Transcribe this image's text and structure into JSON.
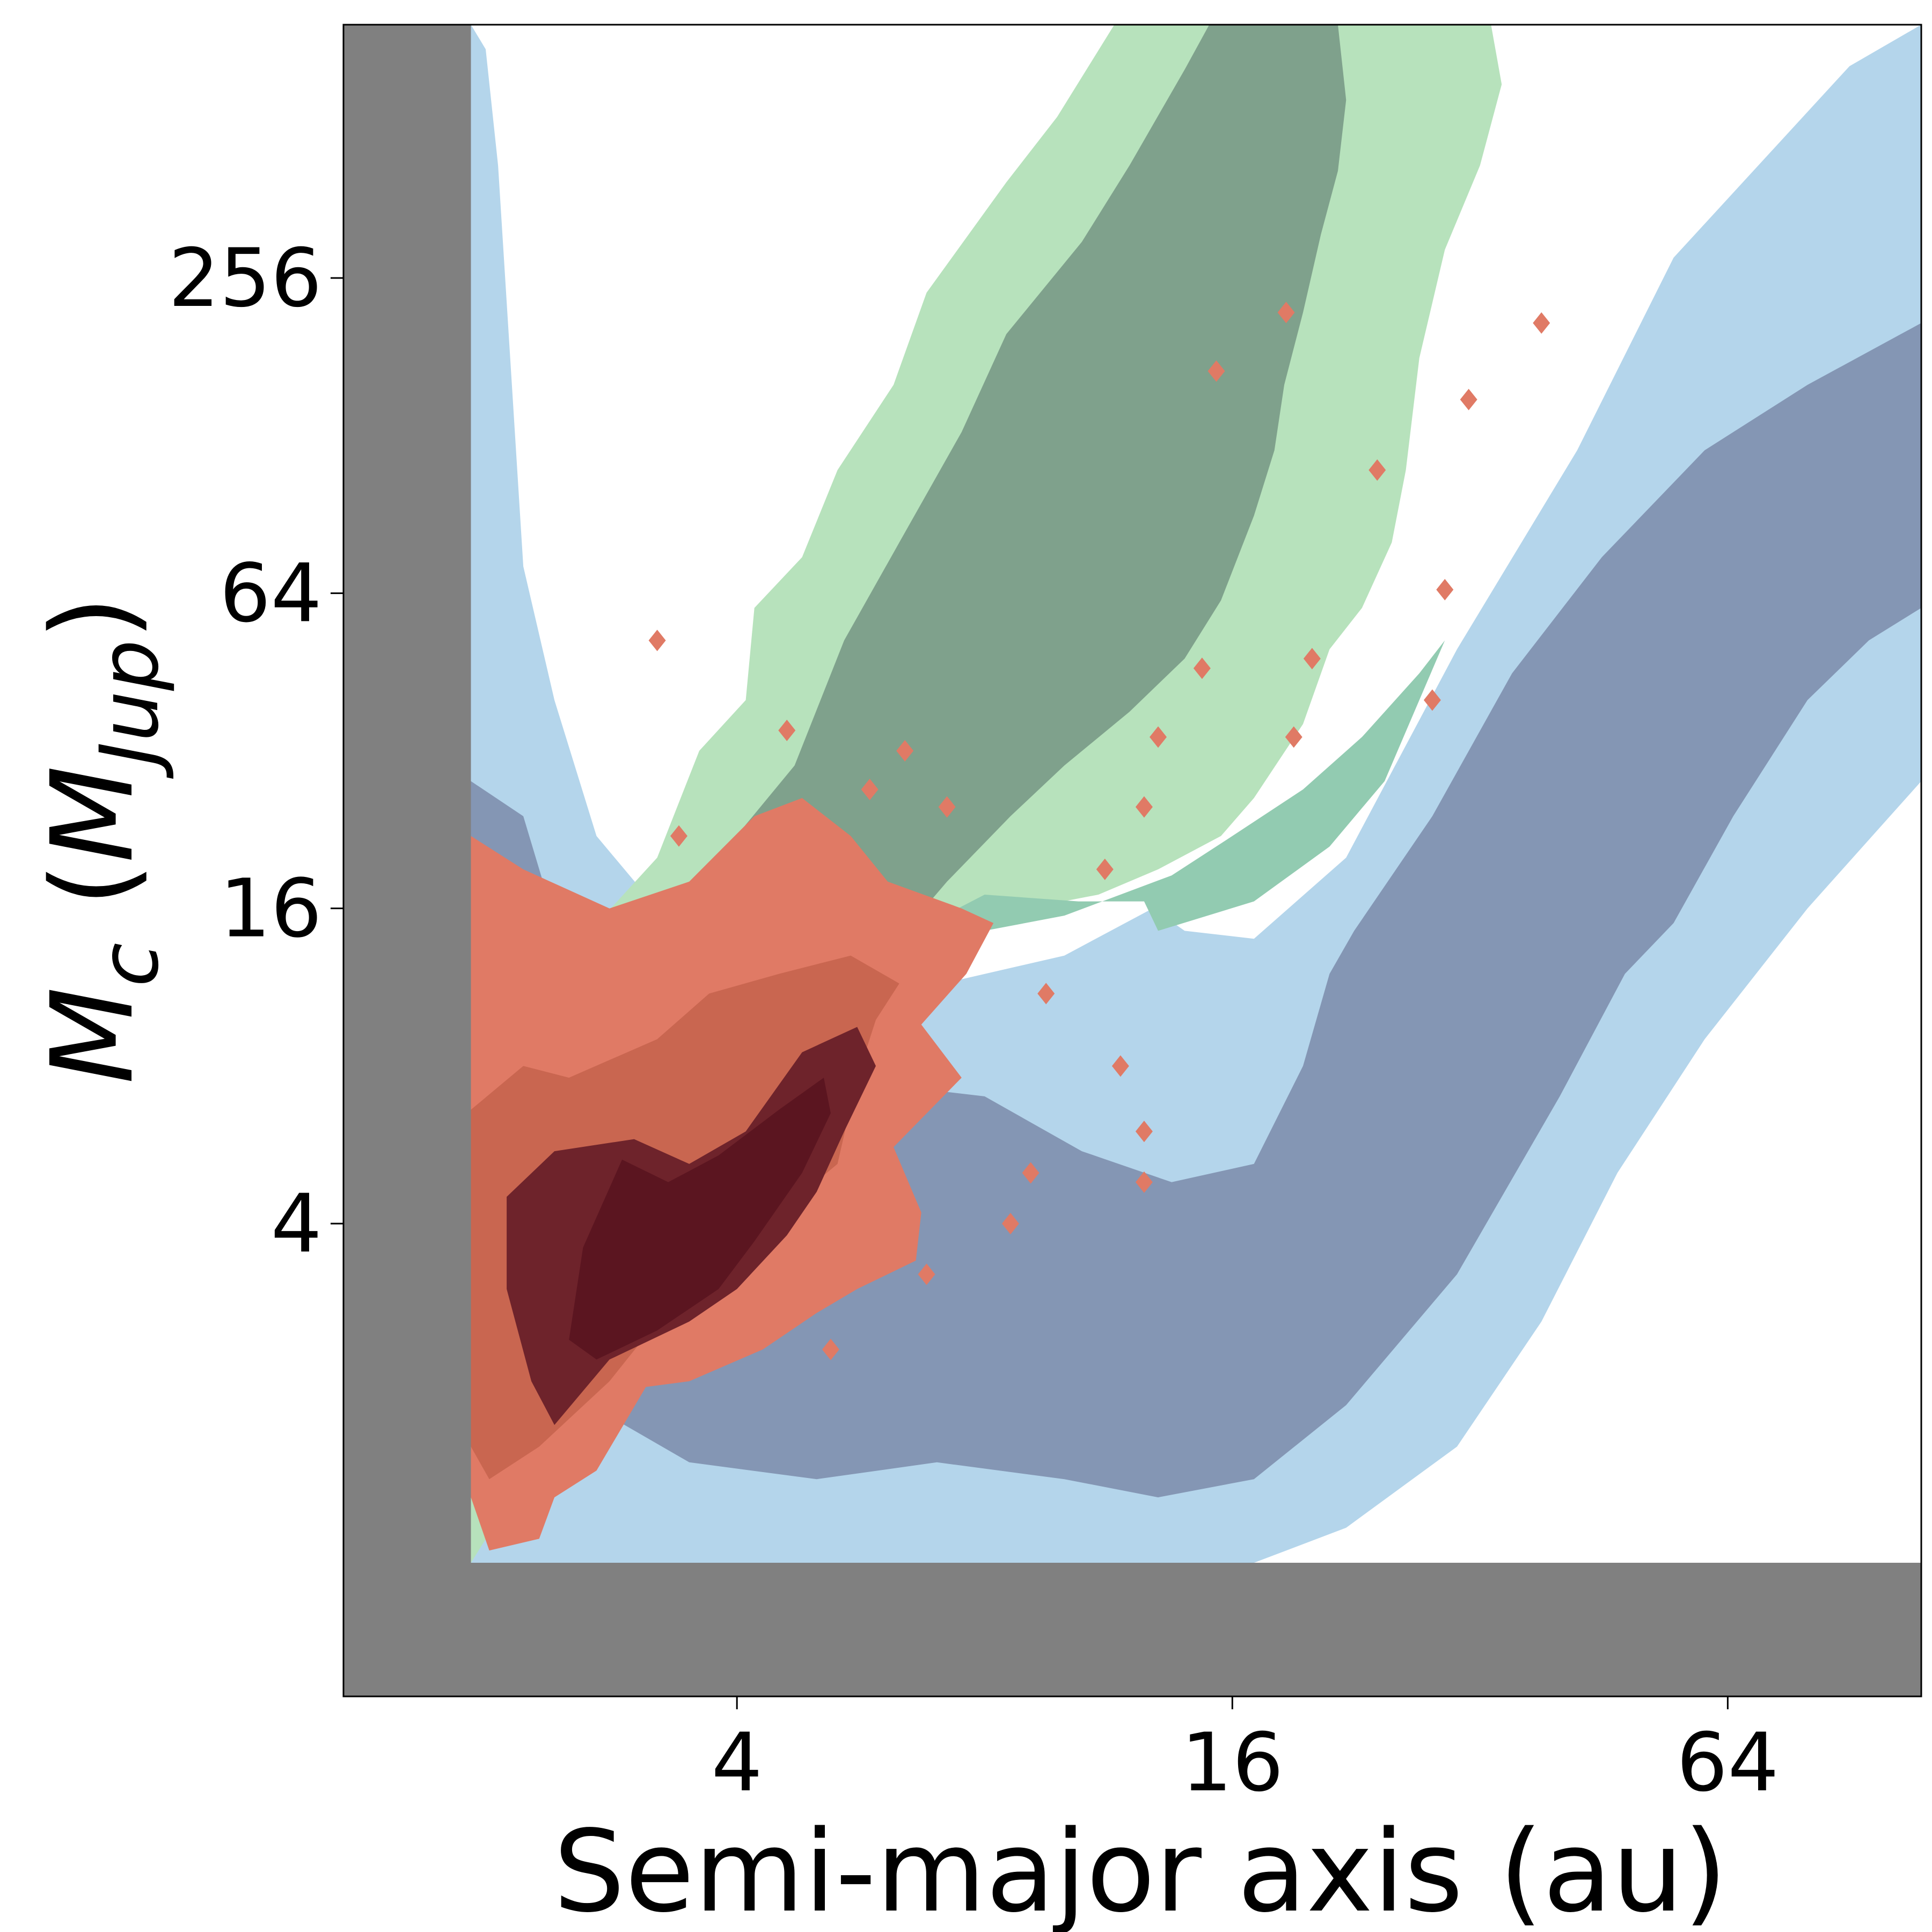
{
  "chart_data": {
    "type": "contour",
    "xlabel": "Semi-major axis (au)",
    "ylabel_main": "M",
    "ylabel_sub": "c",
    "ylabel_paren": "M",
    "ylabel_paren_sub": "Jup",
    "x_scale": "log2",
    "y_scale": "log2",
    "xlim": [
      1.33,
      110
    ],
    "ylim": [
      0.5,
      780
    ],
    "xticks": [
      4,
      16,
      64
    ],
    "xtick_labels": [
      "4",
      "16",
      "64"
    ],
    "yticks": [
      4,
      16,
      64,
      256
    ],
    "ytick_labels": [
      "4",
      "16",
      "64",
      "256"
    ],
    "excluded_region": {
      "color": "#808080",
      "a_below_au": 1.9,
      "mass_below_mjup": 0.9
    },
    "grid": false,
    "legend": "none",
    "layers": [
      {
        "id": "blue-outer",
        "color": "#b4d5eb",
        "contour": [
          [
            1.9,
            780
          ],
          [
            1.98,
            700
          ],
          [
            2.05,
            420
          ],
          [
            2.2,
            72
          ],
          [
            2.4,
            40
          ],
          [
            2.7,
            22
          ],
          [
            3.2,
            16
          ],
          [
            4.4,
            13
          ],
          [
            6.3,
            11
          ],
          [
            10,
            13
          ],
          [
            12.8,
            16
          ],
          [
            14,
            14.5
          ],
          [
            17,
            14
          ],
          [
            22,
            20
          ],
          [
            30,
            50
          ],
          [
            42,
            120
          ],
          [
            55,
            280
          ],
          [
            90,
            650
          ],
          [
            110,
            780
          ],
          [
            110,
            28
          ],
          [
            80,
            16
          ],
          [
            60,
            9
          ],
          [
            47,
            5
          ],
          [
            38,
            2.6
          ],
          [
            30,
            1.5
          ],
          [
            22,
            1.05
          ],
          [
            17,
            0.9
          ],
          [
            13,
            0.9
          ],
          [
            10,
            0.9
          ],
          [
            6,
            0.9
          ],
          [
            1.9,
            0.9
          ]
        ]
      },
      {
        "id": "blue-inner",
        "color": "#8496b4",
        "contour": [
          [
            1.9,
            28
          ],
          [
            2.2,
            24
          ],
          [
            2.6,
            10
          ],
          [
            3.5,
            8
          ],
          [
            5.5,
            7.5
          ],
          [
            8,
            7
          ],
          [
            10.5,
            5.5
          ],
          [
            13.5,
            4.8
          ],
          [
            17,
            5.2
          ],
          [
            19.5,
            8
          ],
          [
            21,
            12
          ],
          [
            22.5,
            14.5
          ],
          [
            28,
            24
          ],
          [
            35,
            45
          ],
          [
            45,
            75
          ],
          [
            60,
            120
          ],
          [
            80,
            160
          ],
          [
            110,
            210
          ],
          [
            110,
            60
          ],
          [
            95,
            52
          ],
          [
            80,
            40
          ],
          [
            65,
            24
          ],
          [
            55,
            15
          ],
          [
            48,
            12
          ],
          [
            40,
            7
          ],
          [
            30,
            3.2
          ],
          [
            22,
            1.8
          ],
          [
            17,
            1.3
          ],
          [
            13,
            1.2
          ],
          [
            10,
            1.3
          ],
          [
            7,
            1.4
          ],
          [
            5,
            1.3
          ],
          [
            3.5,
            1.4
          ],
          [
            2.5,
            1.9
          ],
          [
            1.9,
            2.6
          ]
        ]
      },
      {
        "id": "green-outer",
        "color": "#b7e2bc",
        "contour": [
          [
            1.9,
            5.8
          ],
          [
            2.3,
            9
          ],
          [
            2.6,
            14
          ],
          [
            3.2,
            20
          ],
          [
            3.6,
            32
          ],
          [
            4.1,
            40
          ],
          [
            4.2,
            60
          ],
          [
            4.8,
            75
          ],
          [
            5.3,
            110
          ],
          [
            6.2,
            160
          ],
          [
            6.8,
            240
          ],
          [
            8.5,
            390
          ],
          [
            9.8,
            520
          ],
          [
            11.5,
            780
          ],
          [
            33,
            780
          ],
          [
            34,
            600
          ],
          [
            32,
            420
          ],
          [
            29,
            290
          ],
          [
            27,
            180
          ],
          [
            26,
            110
          ],
          [
            25,
            80
          ],
          [
            23,
            60
          ],
          [
            21,
            50
          ],
          [
            19.5,
            36
          ],
          [
            17,
            26
          ],
          [
            15.5,
            22
          ],
          [
            13,
            19
          ],
          [
            11,
            17
          ],
          [
            9,
            16
          ],
          [
            7.5,
            15
          ],
          [
            6.2,
            13
          ],
          [
            4.4,
            11
          ],
          [
            3.2,
            9
          ],
          [
            2.8,
            5.5
          ],
          [
            2.4,
            2.5
          ],
          [
            2.2,
            1.3
          ],
          [
            1.9,
            0.9
          ]
        ]
      },
      {
        "id": "green-inner",
        "color": "#7fa18c",
        "contour": [
          [
            3.5,
            14.5
          ],
          [
            3.8,
            20
          ],
          [
            4.7,
            30
          ],
          [
            5.4,
            52
          ],
          [
            6.3,
            80
          ],
          [
            7.5,
            130
          ],
          [
            8.5,
            200
          ],
          [
            10.5,
            300
          ],
          [
            12,
            420
          ],
          [
            14,
            640
          ],
          [
            15,
            780
          ],
          [
            21.5,
            780
          ],
          [
            22,
            560
          ],
          [
            21.5,
            410
          ],
          [
            20.5,
            310
          ],
          [
            19.5,
            220
          ],
          [
            18.5,
            160
          ],
          [
            18,
            120
          ],
          [
            17,
            90
          ],
          [
            15.5,
            62
          ],
          [
            14,
            48
          ],
          [
            12,
            38
          ],
          [
            10,
            30
          ],
          [
            8.6,
            24
          ],
          [
            7.2,
            18
          ],
          [
            6.4,
            14.5
          ],
          [
            5.6,
            12.8
          ],
          [
            4.4,
            12.8
          ]
        ]
      },
      {
        "id": "teal-overlap",
        "color": "#92cbb1",
        "contour": [
          [
            2.5,
            16.5
          ],
          [
            3.6,
            12.5
          ],
          [
            4.7,
            11.5
          ],
          [
            6.3,
            14
          ],
          [
            8,
            17
          ],
          [
            10.4,
            16.5
          ],
          [
            12.5,
            16.5
          ],
          [
            13,
            14.5
          ],
          [
            17,
            16.5
          ],
          [
            21,
            21
          ],
          [
            24.5,
            28
          ],
          [
            27,
            40
          ],
          [
            29,
            52
          ],
          [
            27,
            45
          ],
          [
            23,
            34
          ],
          [
            19.5,
            27
          ],
          [
            16,
            22
          ],
          [
            13.5,
            18.5
          ],
          [
            10,
            15.5
          ],
          [
            8,
            14.5
          ],
          [
            6.3,
            11.5
          ],
          [
            4.6,
            9
          ],
          [
            3.5,
            8.2
          ],
          [
            2.8,
            7.5
          ]
        ]
      },
      {
        "id": "red-outer",
        "color": "#e07a65",
        "contour": [
          [
            1.9,
            22
          ],
          [
            2.2,
            19
          ],
          [
            2.8,
            16
          ],
          [
            3.5,
            18
          ],
          [
            4.2,
            24
          ],
          [
            4.8,
            26
          ],
          [
            5.5,
            22
          ],
          [
            6.1,
            18
          ],
          [
            7.5,
            16
          ],
          [
            8.2,
            15
          ],
          [
            7.6,
            12
          ],
          [
            6.7,
            9.6
          ],
          [
            7.5,
            7.6
          ],
          [
            6.2,
            5.6
          ],
          [
            6.7,
            4.2
          ],
          [
            6.6,
            3.4
          ],
          [
            5.6,
            3.0
          ],
          [
            5.0,
            2.7
          ],
          [
            4.3,
            2.3
          ],
          [
            3.5,
            2.0
          ],
          [
            3.1,
            1.95
          ],
          [
            2.7,
            1.35
          ],
          [
            2.4,
            1.2
          ],
          [
            2.3,
            1.0
          ],
          [
            2.0,
            0.95
          ],
          [
            1.9,
            1.2
          ]
        ]
      },
      {
        "id": "red-mid",
        "color": "#c96650",
        "contour": [
          [
            1.9,
            6.6
          ],
          [
            2.2,
            8
          ],
          [
            2.5,
            7.6
          ],
          [
            3.2,
            9
          ],
          [
            3.7,
            11
          ],
          [
            4.5,
            12
          ],
          [
            5.5,
            13
          ],
          [
            6.3,
            11.5
          ],
          [
            5.9,
            9.8
          ],
          [
            5.6,
            7.6
          ],
          [
            5.3,
            5.2
          ],
          [
            4.5,
            4.2
          ],
          [
            3.8,
            3.4
          ],
          [
            3.2,
            2.6
          ],
          [
            2.8,
            2.0
          ],
          [
            2.3,
            1.5
          ],
          [
            2.0,
            1.3
          ],
          [
            1.9,
            1.5
          ]
        ]
      },
      {
        "id": "red-inner",
        "color": "#6e232b",
        "contour": [
          [
            2.1,
            4.5
          ],
          [
            2.4,
            5.5
          ],
          [
            3.0,
            5.8
          ],
          [
            3.5,
            5.2
          ],
          [
            4.1,
            6.0
          ],
          [
            4.8,
            8.5
          ],
          [
            5.6,
            9.5
          ],
          [
            5.9,
            8
          ],
          [
            5.4,
            6.0
          ],
          [
            5.0,
            4.6
          ],
          [
            4.6,
            3.8
          ],
          [
            4.0,
            3.0
          ],
          [
            3.5,
            2.6
          ],
          [
            2.8,
            2.2
          ],
          [
            2.4,
            1.65
          ],
          [
            2.25,
            2.0
          ],
          [
            2.1,
            3.0
          ]
        ]
      },
      {
        "id": "red-core",
        "color": "#5b1520",
        "contour": [
          [
            2.9,
            5.3
          ],
          [
            3.3,
            4.8
          ],
          [
            3.8,
            5.4
          ],
          [
            4.5,
            6.6
          ],
          [
            5.1,
            7.6
          ],
          [
            5.2,
            6.5
          ],
          [
            4.8,
            5.0
          ],
          [
            4.2,
            3.7
          ],
          [
            3.8,
            3.0
          ],
          [
            3.2,
            2.5
          ],
          [
            2.7,
            2.2
          ],
          [
            2.5,
            2.4
          ],
          [
            2.6,
            3.6
          ]
        ]
      }
    ],
    "red_islands": [
      [
        4.6,
        35
      ],
      [
        3.2,
        52
      ],
      [
        3.4,
        22
      ],
      [
        5.8,
        27
      ],
      [
        7.2,
        25
      ],
      [
        6.4,
        32
      ],
      [
        11.2,
        19
      ],
      [
        13,
        34
      ],
      [
        14.7,
        46
      ],
      [
        12.5,
        25
      ],
      [
        19,
        34
      ],
      [
        20,
        48
      ],
      [
        15.3,
        170
      ],
      [
        18.6,
        220
      ],
      [
        24,
        110
      ],
      [
        29,
        65
      ],
      [
        9.5,
        11
      ],
      [
        11.7,
        8
      ],
      [
        12.5,
        6
      ],
      [
        9.1,
        5
      ],
      [
        8.6,
        4
      ],
      [
        6.8,
        3.2
      ],
      [
        5.2,
        2.3
      ],
      [
        31,
        150
      ],
      [
        38,
        210
      ],
      [
        12.5,
        4.8
      ],
      [
        28,
        40
      ]
    ]
  }
}
